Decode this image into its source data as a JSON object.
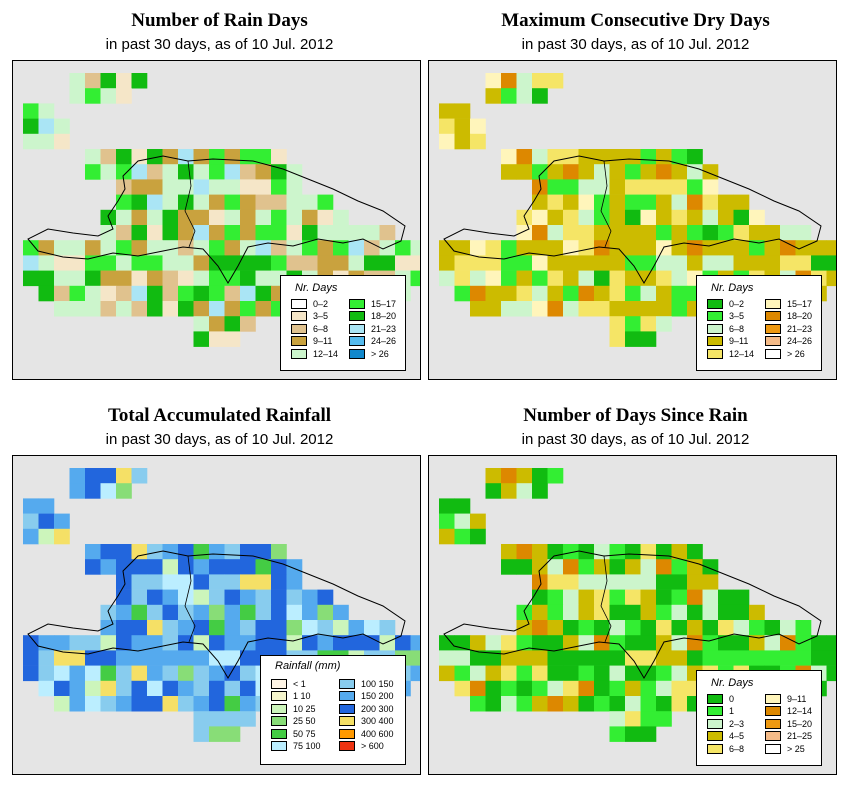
{
  "colors": {
    "background": "#e5e5e5",
    "coast": "#000000"
  },
  "panels": [
    {
      "title": "Number of Rain Days",
      "subtitle": "in past 30 days, as of  10 Jul. 2012",
      "legend": {
        "title": "Nr. Days",
        "items": [
          {
            "label": "0–2",
            "color": "#ffffff"
          },
          {
            "label": "3–5",
            "color": "#f5e6c8"
          },
          {
            "label": "6–8",
            "color": "#e0c28e"
          },
          {
            "label": "9–11",
            "color": "#c9a23e"
          },
          {
            "label": "12–14",
            "color": "#ccf5cc"
          },
          {
            "label": "15–17",
            "color": "#33ee33"
          },
          {
            "label": "18–20",
            "color": "#11bb11"
          },
          {
            "label": "21–23",
            "color": "#aae5f5"
          },
          {
            "label": "24–26",
            "color": "#55bbee"
          },
          {
            "label": "> 26",
            "color": "#1188cc"
          }
        ]
      }
    },
    {
      "title": "Maximum Consecutive Dry Days",
      "subtitle": "in past 30 days, as of  10 Jul. 2012",
      "legend": {
        "title": "Nr. Days",
        "items": [
          {
            "label": "0–2",
            "color": "#11bb11"
          },
          {
            "label": "3–5",
            "color": "#33ee33"
          },
          {
            "label": "6–8",
            "color": "#ccf5cc"
          },
          {
            "label": "9–11",
            "color": "#ccbb00"
          },
          {
            "label": "12–14",
            "color": "#f5e566"
          },
          {
            "label": "15–17",
            "color": "#fff5bb"
          },
          {
            "label": "18–20",
            "color": "#dd8800"
          },
          {
            "label": "21–23",
            "color": "#ee9911"
          },
          {
            "label": "24–26",
            "color": "#f5bb88"
          },
          {
            "label": "> 26",
            "color": "#ffffff"
          }
        ]
      }
    },
    {
      "title": "Total Accumulated Rainfall",
      "subtitle": "in past 30 days, as of  10 Jul. 2012",
      "legend": {
        "title": "Rainfall (mm)",
        "items": [
          {
            "label": "< 1",
            "color": "#fff5e6"
          },
          {
            "label": "1  10",
            "color": "#f5f5cc"
          },
          {
            "label": "10  25",
            "color": "#ccf5bb"
          },
          {
            "label": "25  50",
            "color": "#88dd77"
          },
          {
            "label": "50  75",
            "color": "#44cc44"
          },
          {
            "label": "75  100",
            "color": "#bbeeff"
          },
          {
            "label": "100  150",
            "color": "#88ccee"
          },
          {
            "label": "150  200",
            "color": "#55aaee"
          },
          {
            "label": "200  300",
            "color": "#2266dd"
          },
          {
            "label": "300  400",
            "color": "#f5e066"
          },
          {
            "label": "400  600",
            "color": "#ff9900"
          },
          {
            "label": "> 600",
            "color": "#ee3311"
          }
        ]
      }
    },
    {
      "title": "Number of Days Since Rain",
      "subtitle": "in past 30 days, as of  10 Jul. 2012",
      "legend": {
        "title": "Nr. Days",
        "items": [
          {
            "label": "0",
            "color": "#11bb11"
          },
          {
            "label": "1",
            "color": "#33ee33"
          },
          {
            "label": "2–3",
            "color": "#ccf5cc"
          },
          {
            "label": "4–5",
            "color": "#ccbb00"
          },
          {
            "label": "6–8",
            "color": "#f5e566"
          },
          {
            "label": "9–11",
            "color": "#fff5bb"
          },
          {
            "label": "12–14",
            "color": "#dd8800"
          },
          {
            "label": "15–20",
            "color": "#ee9911"
          },
          {
            "label": "21–25",
            "color": "#f5bb88"
          },
          {
            "label": "> 25",
            "color": "#ffffff"
          }
        ]
      }
    }
  ]
}
